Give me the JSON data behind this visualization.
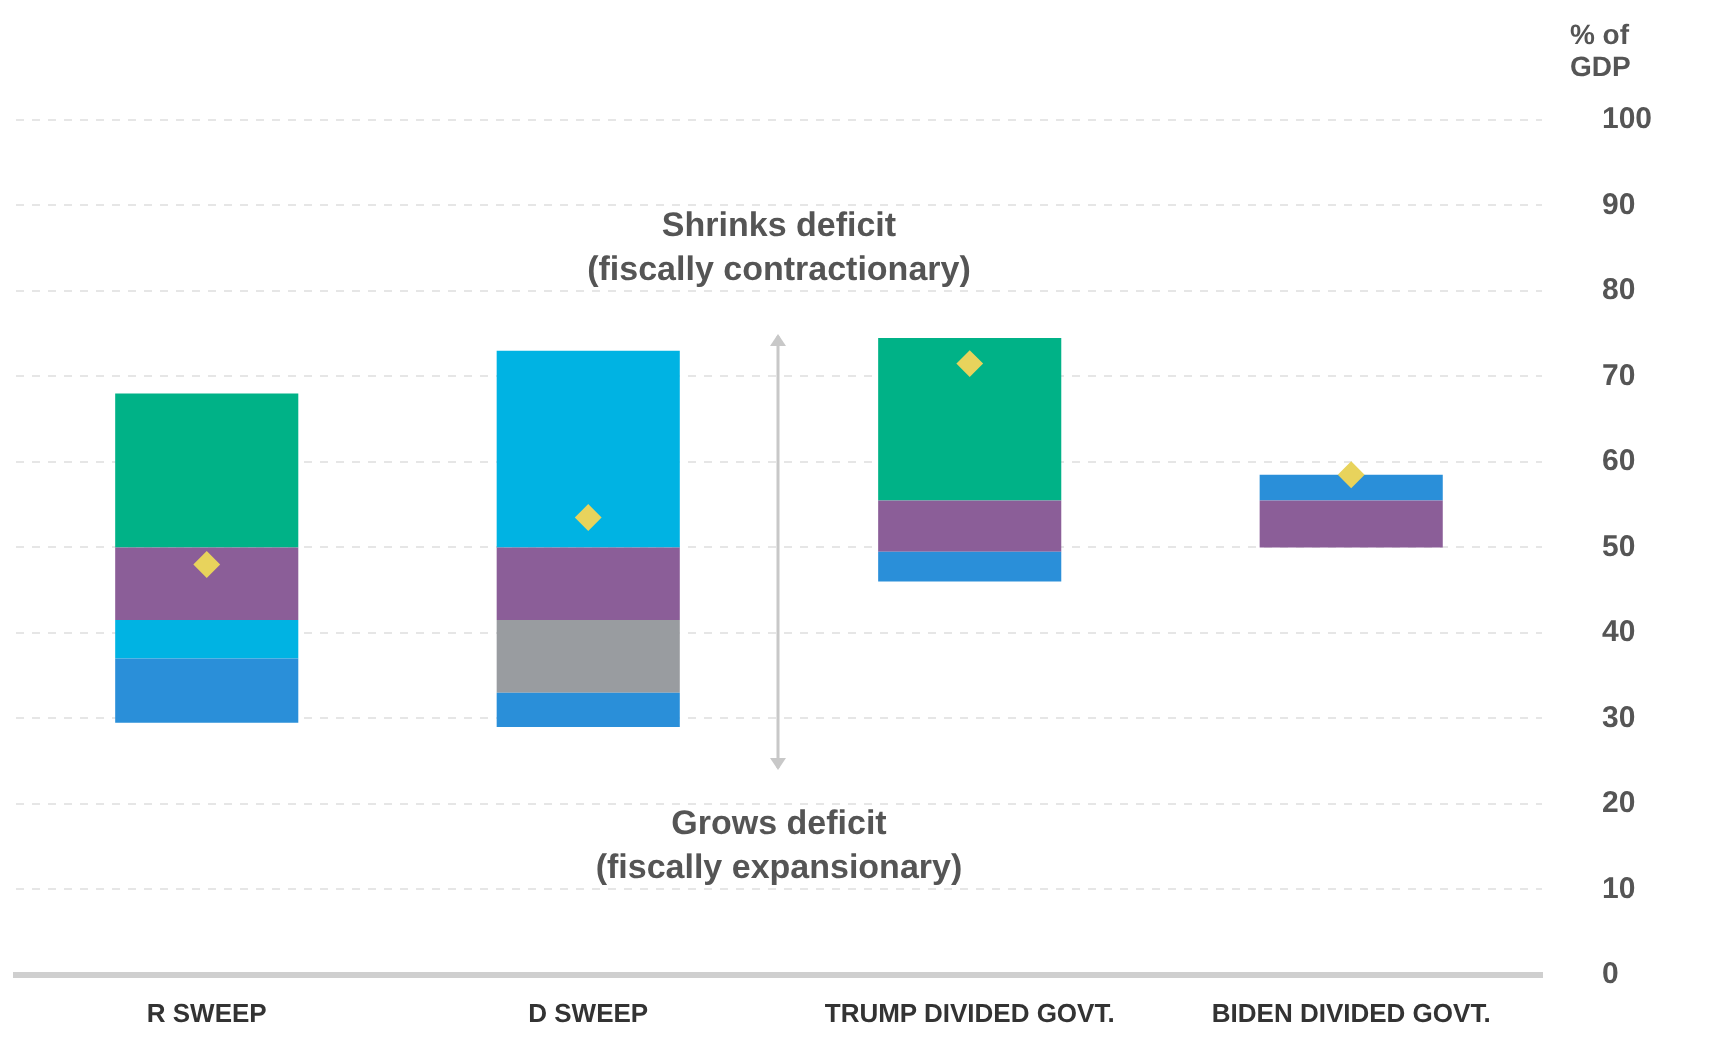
{
  "chart_data": {
    "type": "bar",
    "categories": [
      "R SWEEP",
      "D SWEEP",
      "TRUMP DIVIDED GOVT.",
      "BIDEN DIVIDED GOVT."
    ],
    "series": [
      {
        "color": "#2a8fd9",
        "base": [
          29.5,
          29,
          46,
          null
        ],
        "values": [
          7.5,
          4,
          3.5,
          null
        ]
      },
      {
        "color": "#00b3e3",
        "base": [
          37,
          null,
          null,
          null
        ],
        "values": [
          4.5,
          null,
          null,
          null
        ]
      },
      {
        "color": "#999ca0",
        "base": [
          null,
          33,
          null,
          null
        ],
        "values": [
          null,
          8.5,
          null,
          null
        ]
      },
      {
        "color": "#8b5e98",
        "base": [
          41.5,
          41.5,
          49.5,
          50
        ],
        "values": [
          8.5,
          8.5,
          6,
          5.5
        ]
      },
      {
        "color": "#00b287",
        "base": [
          50,
          null,
          55.5,
          null
        ],
        "values": [
          18,
          null,
          19,
          null
        ]
      },
      {
        "color": "#00b3e3",
        "base": [
          null,
          50,
          null,
          null
        ],
        "values": [
          null,
          23,
          null,
          null
        ]
      },
      {
        "color": "#2a8fd9",
        "base": [
          null,
          null,
          null,
          55.5
        ],
        "values": [
          null,
          null,
          null,
          3
        ]
      },
      {
        "type": "scatter",
        "color": "#e8d35c",
        "x": [
          "R SWEEP",
          "D SWEEP",
          "TRUMP DIVIDED GOVT.",
          "BIDEN DIVIDED GOVT."
        ],
        "values": [
          48,
          53.5,
          71.5,
          58.5
        ]
      }
    ],
    "marker": "diamond",
    "ylabel": "% of GDP",
    "ylim": [
      0,
      100
    ],
    "yticks": [
      0,
      10,
      20,
      30,
      40,
      50,
      60,
      70,
      80,
      90,
      100
    ],
    "grid": "y",
    "legend": false,
    "annotations": [
      "Shrinks deficit\n(fiscally contractionary)",
      "Grows deficit\n(fiscally expansionary)"
    ]
  }
}
